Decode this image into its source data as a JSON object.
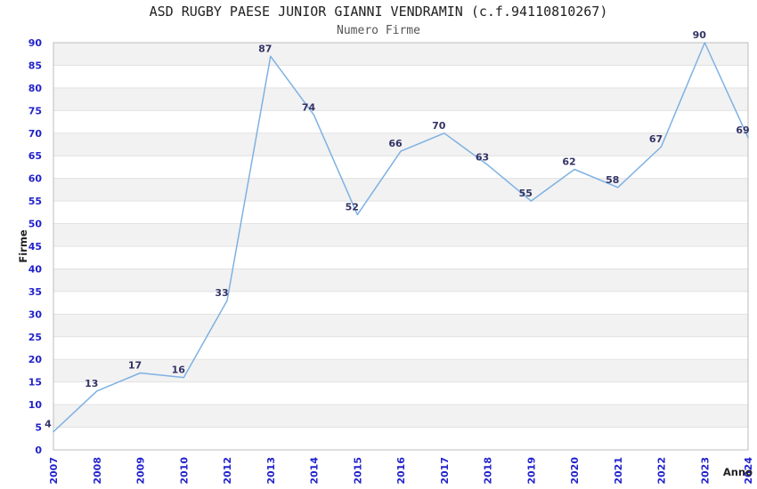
{
  "chart_data": {
    "type": "line",
    "title": "ASD RUGBY PAESE JUNIOR GIANNI VENDRAMIN (c.f.94110810267)",
    "subtitle": "Numero Firme",
    "xlabel": "Anno",
    "ylabel": "Firme",
    "categories": [
      "2007",
      "2008",
      "2009",
      "2010",
      "2012",
      "2013",
      "2014",
      "2015",
      "2016",
      "2017",
      "2018",
      "2019",
      "2020",
      "2021",
      "2022",
      "2023",
      "2024"
    ],
    "values": [
      4,
      13,
      17,
      16,
      33,
      87,
      74,
      52,
      66,
      70,
      63,
      55,
      62,
      58,
      67,
      90,
      69
    ],
    "ylim": [
      0,
      90
    ],
    "ytick_step": 5,
    "grid": "horizontal-bands",
    "legend": "none",
    "colors": {
      "line": "#7eb1e3",
      "tick_label": "#2222cc",
      "data_label": "#333366",
      "band_fill": "#f2f2f2",
      "grid_line": "#e2e2e2",
      "plot_border": "#bcbcbc",
      "title_text": "#222222",
      "subtitle_text": "#555555",
      "axis_name_text": "#222222"
    }
  }
}
